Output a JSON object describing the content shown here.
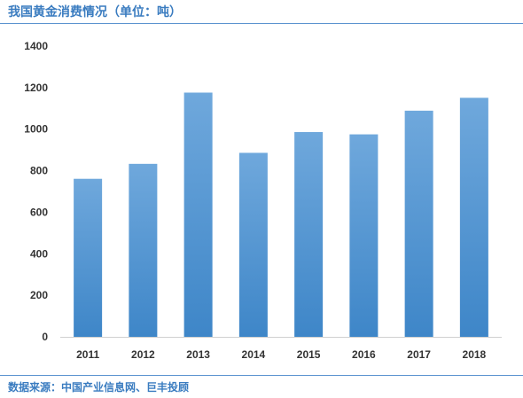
{
  "header": {
    "title": "我国黄金消费情况（单位：吨）"
  },
  "footer": {
    "source": "数据来源：中国产业信息网、巨丰投顾"
  },
  "colors": {
    "bar_top": "#6fa8dc",
    "bar_bottom": "#3e86c8",
    "accent": "#3a7cc0"
  },
  "chart_data": {
    "type": "bar",
    "title": "我国黄金消费情况（单位：吨）",
    "xlabel": "",
    "ylabel": "",
    "categories": [
      "2011",
      "2012",
      "2013",
      "2014",
      "2015",
      "2016",
      "2017",
      "2018"
    ],
    "values": [
      761,
      833,
      1176,
      886,
      986,
      975,
      1089,
      1151
    ],
    "ylim": [
      0,
      1400
    ],
    "yticks": [
      "0",
      "200",
      "400",
      "600",
      "800",
      "1000",
      "1200",
      "1400"
    ],
    "grid": false,
    "legend": "none"
  }
}
